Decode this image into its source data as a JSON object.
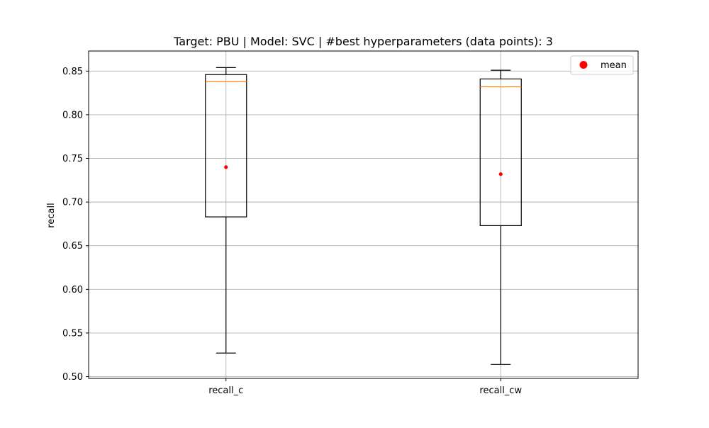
{
  "chart_data": {
    "type": "box",
    "title": "Target: PBU | Model: SVC | #best hyperparameters (data points): 3",
    "xlabel": "",
    "ylabel": "recall",
    "ylim": [
      0.498,
      0.873
    ],
    "yticks": [
      "0.50",
      "0.55",
      "0.60",
      "0.65",
      "0.70",
      "0.75",
      "0.80",
      "0.85"
    ],
    "grid": true,
    "legend": {
      "placement": "top-right",
      "entries": [
        "mean"
      ]
    },
    "categories": [
      "recall_c",
      "recall_cw"
    ],
    "boxes": [
      {
        "name": "recall_c",
        "whisker_low": 0.527,
        "q1": 0.683,
        "median": 0.838,
        "q3": 0.846,
        "whisker_high": 0.854,
        "mean": 0.74
      },
      {
        "name": "recall_cw",
        "whisker_low": 0.514,
        "q1": 0.673,
        "median": 0.832,
        "q3": 0.841,
        "whisker_high": 0.851,
        "mean": 0.732
      }
    ],
    "colors": {
      "box": "#000000",
      "median": "#ff7f0e",
      "mean": "#ff0000",
      "grid": "#b0b0b0"
    }
  }
}
